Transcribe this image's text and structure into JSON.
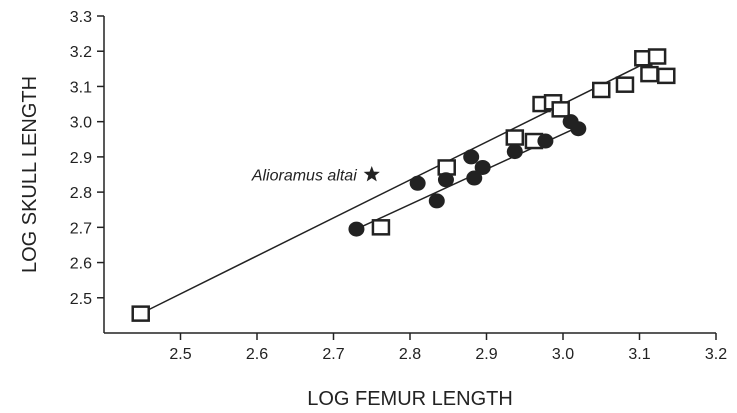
{
  "chart_data": {
    "type": "scatter",
    "title": "",
    "xlabel": "LOG FEMUR LENGTH",
    "ylabel": "LOG SKULL LENGTH",
    "xlim": [
      2.4,
      3.2
    ],
    "ylim": [
      2.4,
      3.3
    ],
    "xticks": [
      2.5,
      2.6,
      2.7,
      2.8,
      2.9,
      3.0,
      3.1,
      3.2
    ],
    "yticks": [
      2.5,
      2.6,
      2.7,
      2.8,
      2.9,
      3.0,
      3.1,
      3.2,
      3.3
    ],
    "xtick_labels": [
      "2.5",
      "2.6",
      "2.7",
      "2.8",
      "2.9",
      "3.0",
      "3.1",
      "3.2"
    ],
    "ytick_labels": [
      "2.5",
      "2.6",
      "2.7",
      "2.8",
      "2.9",
      "3.0",
      "3.1",
      "3.2",
      "3.3"
    ],
    "grid": false,
    "colors": {
      "ink": "#222222",
      "background": "#ffffff"
    },
    "series": [
      {
        "marker": "open-square",
        "points": [
          [
            2.448,
            2.455
          ],
          [
            2.762,
            2.7
          ],
          [
            2.848,
            2.87
          ],
          [
            2.937,
            2.955
          ],
          [
            2.962,
            2.945
          ],
          [
            2.972,
            3.05
          ],
          [
            2.987,
            3.055
          ],
          [
            2.997,
            3.035
          ],
          [
            3.05,
            3.09
          ],
          [
            3.081,
            3.105
          ],
          [
            3.105,
            3.18
          ],
          [
            3.113,
            3.135
          ],
          [
            3.123,
            3.185
          ],
          [
            3.135,
            3.13
          ]
        ]
      },
      {
        "marker": "filled-circle",
        "points": [
          [
            2.73,
            2.695
          ],
          [
            2.81,
            2.825
          ],
          [
            2.835,
            2.775
          ],
          [
            2.847,
            2.835
          ],
          [
            2.88,
            2.9
          ],
          [
            2.884,
            2.84
          ],
          [
            2.895,
            2.87
          ],
          [
            2.937,
            2.915
          ],
          [
            2.977,
            2.945
          ],
          [
            3.01,
            3.0
          ],
          [
            3.02,
            2.98
          ]
        ]
      }
    ],
    "fit_lines": [
      {
        "marker": "open-square",
        "from": [
          2.448,
          2.455
        ],
        "to": [
          3.125,
          3.185
        ]
      },
      {
        "marker": "filled-circle",
        "from": [
          2.73,
          2.695
        ],
        "to": [
          3.025,
          2.99
        ]
      }
    ],
    "annotations": [
      {
        "text": "Alioramus altai",
        "marker": "star",
        "point": [
          2.75,
          2.85
        ]
      }
    ]
  }
}
